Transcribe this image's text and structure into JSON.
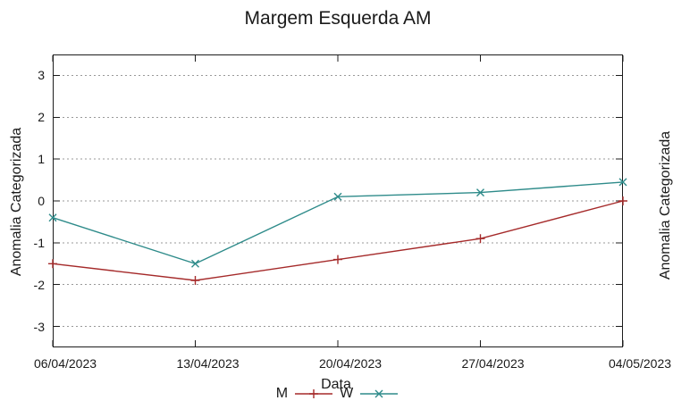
{
  "chart": {
    "title": "Margem Esquerda AM",
    "xlabel": "Data",
    "ylabel": "Anomalia Categorizada"
  },
  "partial_right_chart": {
    "ylabel": "Anomalia Categorizada"
  },
  "chart_data": {
    "type": "line",
    "title": "Margem Esquerda AM",
    "xlabel": "Data",
    "ylabel": "Anomalia Categorizada",
    "categories": [
      "06/04/2023",
      "13/04/2023",
      "20/04/2023",
      "27/04/2023",
      "04/05/2023"
    ],
    "series": [
      {
        "name": "M",
        "color": "#a52a2a",
        "marker": "plus",
        "values": [
          -1.5,
          -1.9,
          -1.4,
          -0.9,
          0.0
        ]
      },
      {
        "name": "W",
        "color": "#2e8b8a",
        "marker": "cross",
        "values": [
          -0.4,
          -1.5,
          0.1,
          0.2,
          0.45
        ]
      }
    ],
    "ylim": [
      -3.5,
      3.5
    ],
    "yticks": [
      3,
      2,
      1,
      0,
      -1,
      -2,
      -3
    ],
    "grid": true,
    "grid_style": "dotted-horizontal",
    "grid_color": "#999999",
    "frame_color": "#1c1c1c",
    "legend_position": "bottom-center"
  }
}
